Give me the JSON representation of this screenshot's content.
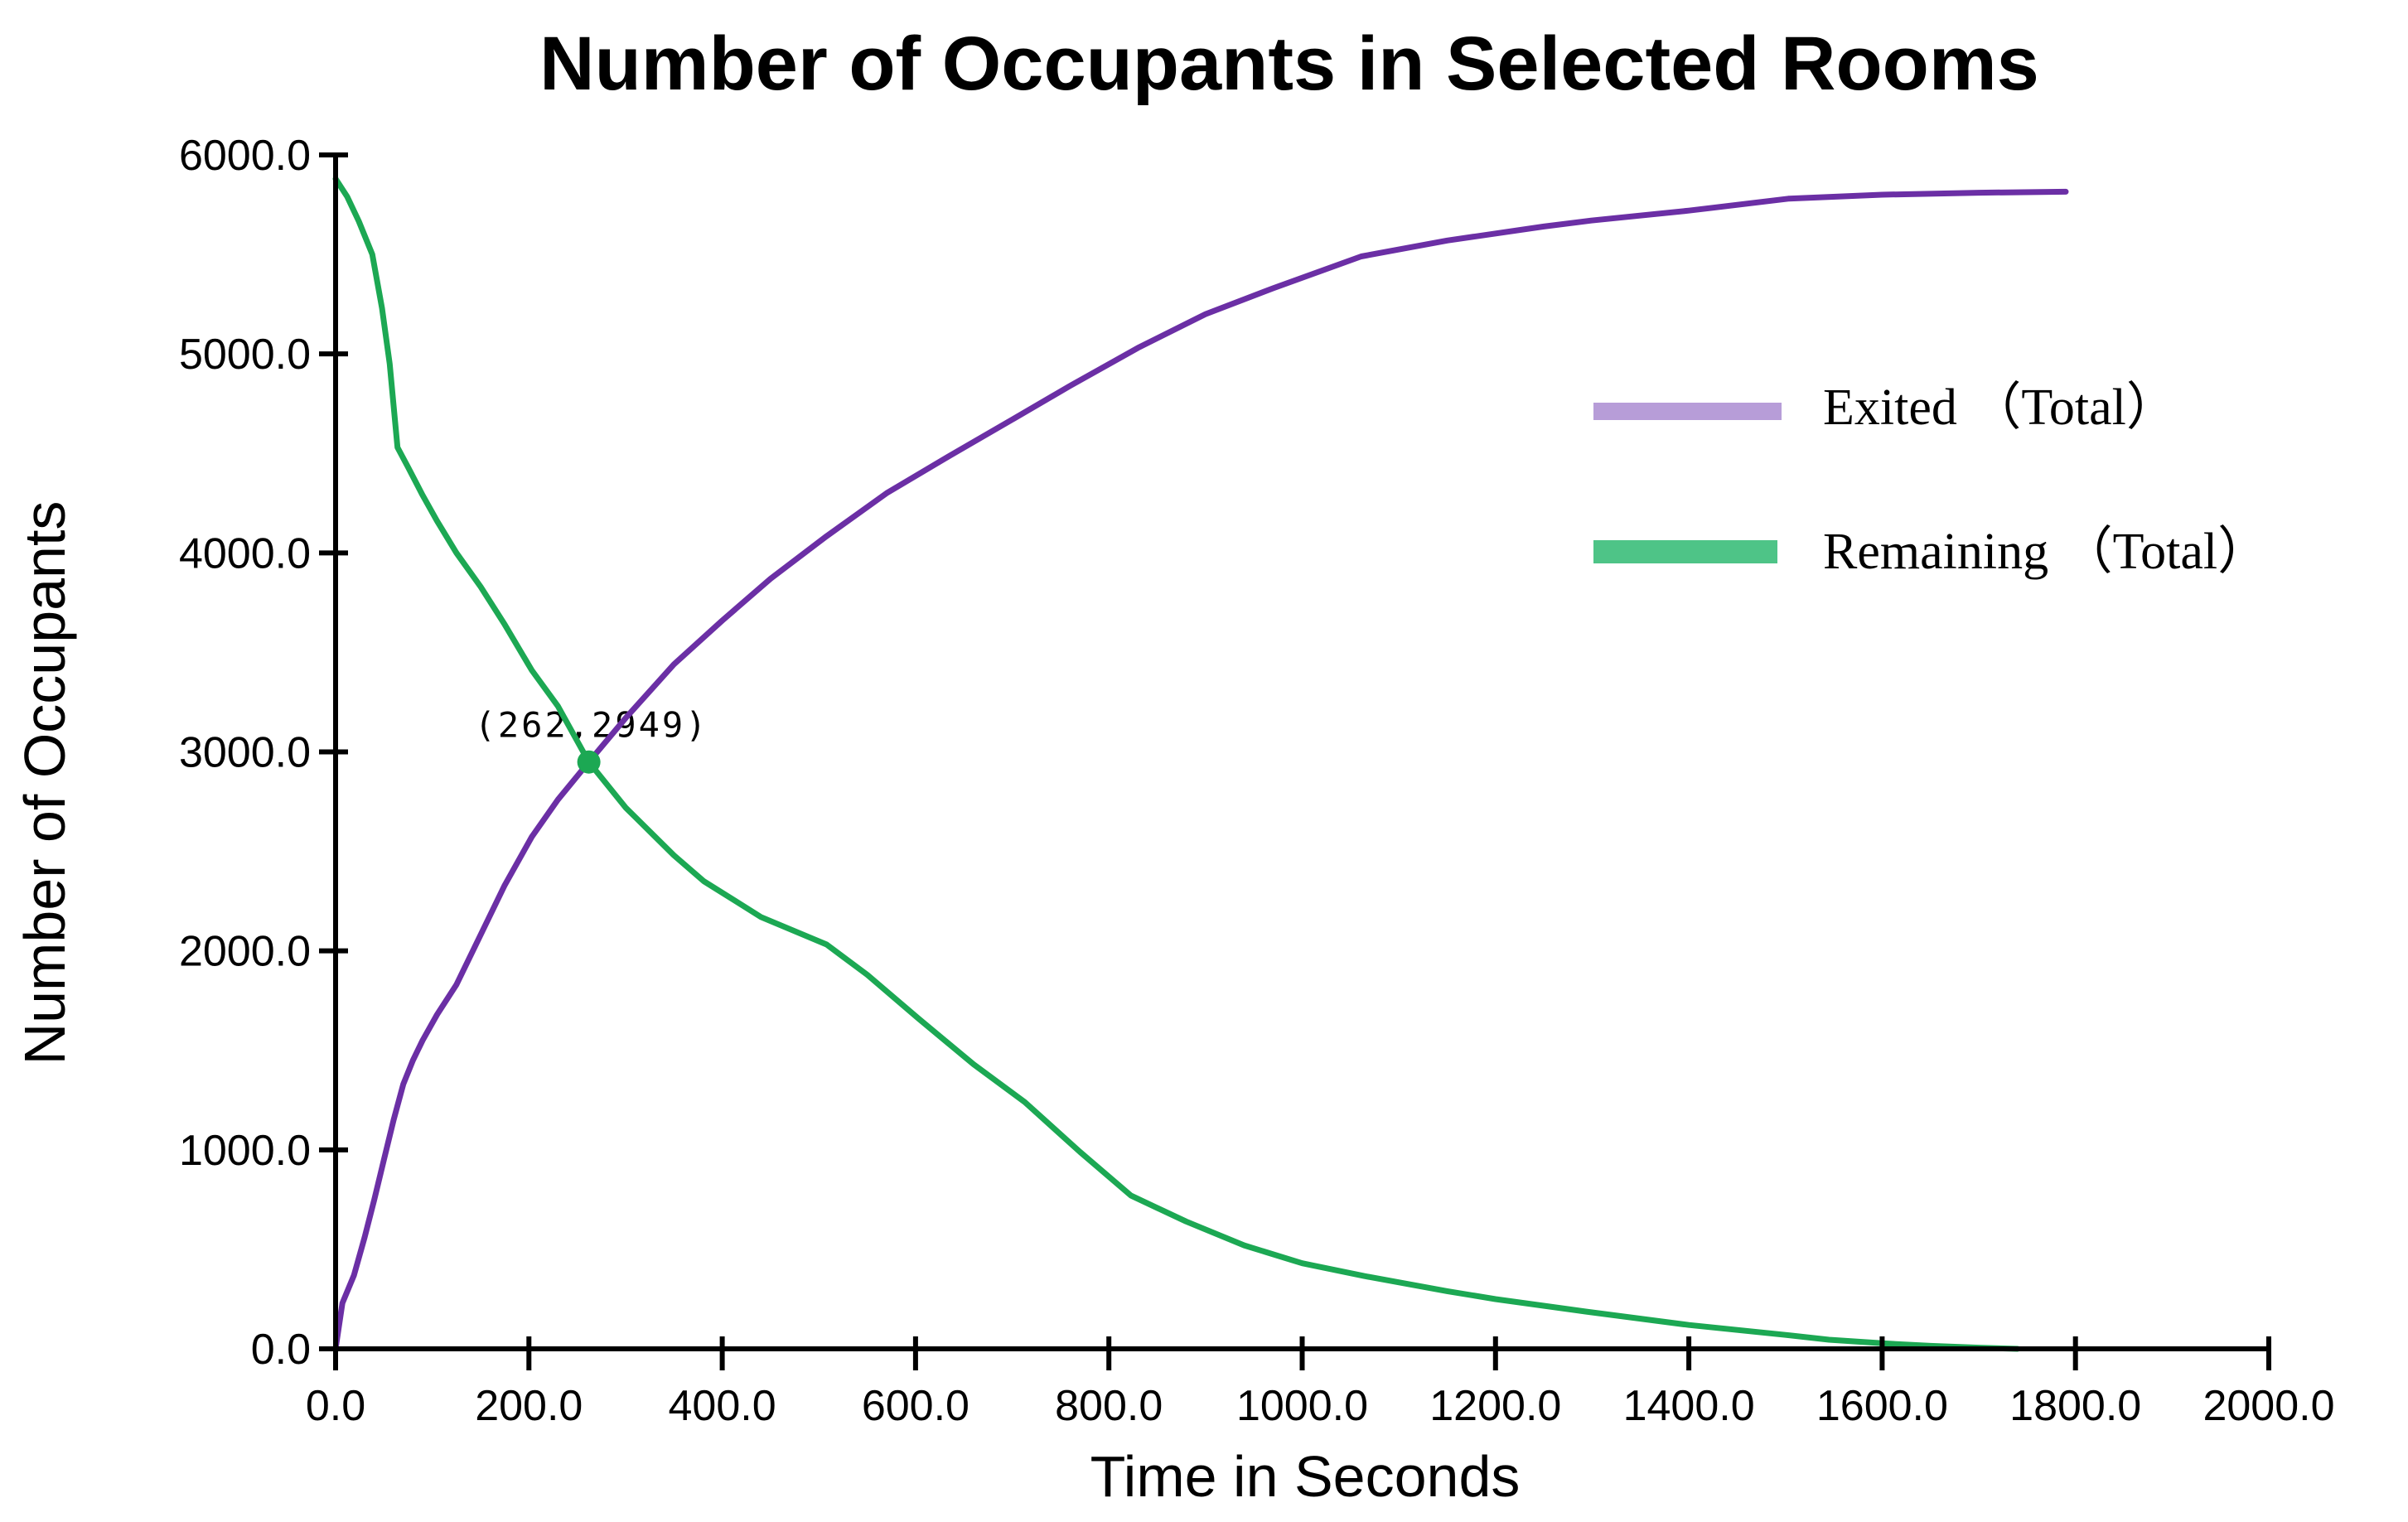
{
  "page": {
    "background": "#ffffff"
  },
  "chart_data": {
    "type": "line",
    "title": "Number of Occupants in Selected Rooms",
    "xlabel": "Time in Seconds",
    "ylabel": "Number of Occupants",
    "xlim": [
      0,
      2000
    ],
    "ylim": [
      0,
      6000
    ],
    "x_ticks": [
      0,
      200,
      400,
      600,
      800,
      1000,
      1200,
      1400,
      1600,
      1800,
      2000
    ],
    "y_ticks": [
      0,
      1000,
      2000,
      3000,
      4000,
      5000,
      6000
    ],
    "tick_decimals": 1,
    "grid": false,
    "axis_color": "#000000",
    "legend_position": "upper right",
    "annotation": {
      "label": "(262,2949)",
      "x": 262,
      "y": 2949,
      "text_color": "#888888",
      "marker_color": "#1ca853"
    },
    "series": [
      {
        "name": "Exited （Total）",
        "line_color": "#6b2fa5",
        "legend_color": "#b79dd8",
        "points": [
          [
            0,
            0
          ],
          [
            7,
            230
          ],
          [
            19,
            370
          ],
          [
            30,
            560
          ],
          [
            40,
            750
          ],
          [
            50,
            950
          ],
          [
            60,
            1150
          ],
          [
            70,
            1330
          ],
          [
            80,
            1450
          ],
          [
            90,
            1550
          ],
          [
            105,
            1680
          ],
          [
            125,
            1830
          ],
          [
            150,
            2080
          ],
          [
            175,
            2330
          ],
          [
            203,
            2573
          ],
          [
            230,
            2760
          ],
          [
            262,
            2949
          ],
          [
            300,
            3170
          ],
          [
            350,
            3440
          ],
          [
            400,
            3660
          ],
          [
            450,
            3870
          ],
          [
            508,
            4084
          ],
          [
            570,
            4300
          ],
          [
            636,
            4490
          ],
          [
            700,
            4670
          ],
          [
            760,
            4840
          ],
          [
            830,
            5030
          ],
          [
            900,
            5200
          ],
          [
            970,
            5330
          ],
          [
            1061,
            5490
          ],
          [
            1150,
            5570
          ],
          [
            1250,
            5640
          ],
          [
            1299,
            5670
          ],
          [
            1400,
            5720
          ],
          [
            1503,
            5780
          ],
          [
            1600,
            5800
          ],
          [
            1700,
            5810
          ],
          [
            1790,
            5815
          ]
        ]
      },
      {
        "name": "Remaining （Total）",
        "line_color": "#1ca853",
        "legend_color": "#4ec487",
        "points": [
          [
            0,
            5880
          ],
          [
            12,
            5790
          ],
          [
            24,
            5667
          ],
          [
            38,
            5500
          ],
          [
            48,
            5230
          ],
          [
            56,
            4950
          ],
          [
            64,
            4530
          ],
          [
            75,
            4430
          ],
          [
            90,
            4290
          ],
          [
            105,
            4160
          ],
          [
            125,
            4000
          ],
          [
            150,
            3830
          ],
          [
            175,
            3640
          ],
          [
            203,
            3410
          ],
          [
            230,
            3230
          ],
          [
            262,
            2949
          ],
          [
            300,
            2720
          ],
          [
            350,
            2480
          ],
          [
            381,
            2350
          ],
          [
            440,
            2170
          ],
          [
            508,
            2032
          ],
          [
            550,
            1880
          ],
          [
            603,
            1660
          ],
          [
            660,
            1430
          ],
          [
            713,
            1240
          ],
          [
            770,
            990
          ],
          [
            823,
            770
          ],
          [
            880,
            640
          ],
          [
            940,
            520
          ],
          [
            1000,
            430
          ],
          [
            1064,
            366
          ],
          [
            1150,
            290
          ],
          [
            1200,
            250
          ],
          [
            1294,
            187
          ],
          [
            1400,
            120
          ],
          [
            1500,
            70
          ],
          [
            1545,
            46
          ],
          [
            1600,
            28
          ],
          [
            1650,
            15
          ],
          [
            1700,
            6
          ],
          [
            1740,
            0
          ]
        ]
      }
    ]
  }
}
